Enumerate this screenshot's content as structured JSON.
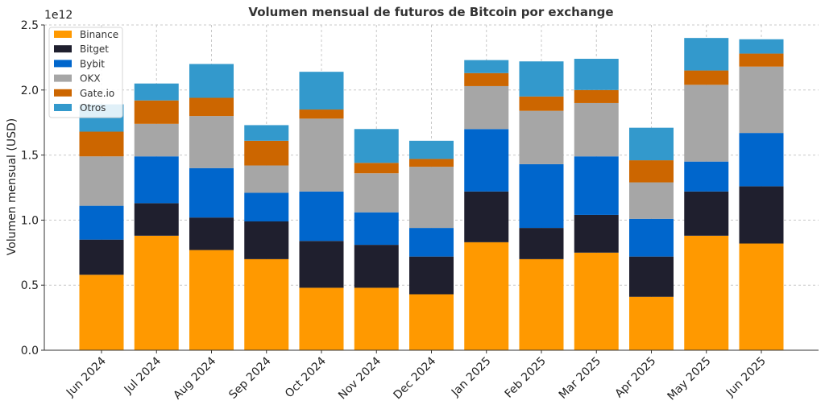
{
  "chart_data": {
    "type": "bar",
    "stacked": true,
    "title": "Volumen mensual de futuros de Bitcoin por exchange",
    "xlabel": "",
    "ylabel": "Volumen mensual (USD)",
    "y_offset_label": "1e12",
    "ylim": [
      0,
      2.5
    ],
    "yticks": [
      "0.0",
      "0.5",
      "1.0",
      "1.5",
      "2.0",
      "2.5"
    ],
    "grid": true,
    "legend_position": "top-left",
    "categories": [
      "Jun 2024",
      "Jul 2024",
      "Aug 2024",
      "Sep 2024",
      "Oct 2024",
      "Nov 2024",
      "Dec 2024",
      "Jan 2025",
      "Feb 2025",
      "Mar 2025",
      "Apr 2025",
      "May 2025",
      "Jun 2025"
    ],
    "series": [
      {
        "name": "Binance",
        "color": "#ff9900",
        "values": [
          0.58,
          0.88,
          0.77,
          0.7,
          0.48,
          0.48,
          0.43,
          0.83,
          0.7,
          0.75,
          0.41,
          0.88,
          0.82
        ]
      },
      {
        "name": "Bitget",
        "color": "#1f1f2e",
        "values": [
          0.27,
          0.25,
          0.25,
          0.29,
          0.36,
          0.33,
          0.29,
          0.39,
          0.24,
          0.29,
          0.31,
          0.34,
          0.44
        ]
      },
      {
        "name": "Bybit",
        "color": "#0066cc",
        "values": [
          0.26,
          0.36,
          0.38,
          0.22,
          0.38,
          0.25,
          0.22,
          0.48,
          0.49,
          0.45,
          0.29,
          0.23,
          0.41
        ]
      },
      {
        "name": "OKX",
        "color": "#a6a6a6",
        "values": [
          0.38,
          0.25,
          0.4,
          0.21,
          0.56,
          0.3,
          0.47,
          0.33,
          0.41,
          0.41,
          0.28,
          0.59,
          0.51
        ]
      },
      {
        "name": "Gate.io",
        "color": "#cc6600",
        "values": [
          0.19,
          0.18,
          0.14,
          0.19,
          0.07,
          0.08,
          0.06,
          0.1,
          0.11,
          0.1,
          0.17,
          0.11,
          0.1
        ]
      },
      {
        "name": "Otros",
        "color": "#3399cc",
        "values": [
          0.21,
          0.13,
          0.26,
          0.12,
          0.29,
          0.26,
          0.14,
          0.1,
          0.27,
          0.24,
          0.25,
          0.25,
          0.11
        ]
      }
    ]
  }
}
